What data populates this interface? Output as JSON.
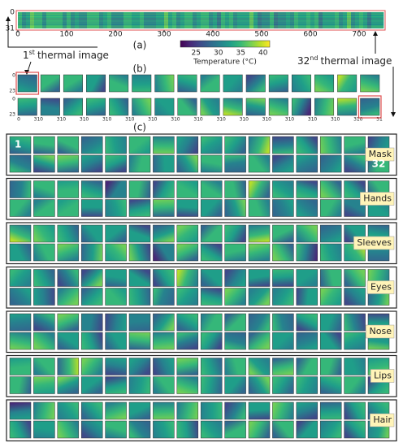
{
  "panel_a": {
    "label": "(a)",
    "yticks": [
      0,
      31
    ],
    "xticks": [
      0,
      100,
      200,
      300,
      400,
      500,
      600,
      700
    ]
  },
  "colorbar": {
    "title": "Temperature (°C)",
    "ticks": [
      25,
      30,
      35,
      40
    ]
  },
  "annotations": {
    "first": {
      "number": "1",
      "suffix": "st",
      "text": "thermal image"
    },
    "last": {
      "number": "32",
      "suffix": "nd",
      "text": "thermal image"
    }
  },
  "panel_b": {
    "label": "(b)",
    "yticks": [
      0,
      23
    ],
    "xticks": [
      0,
      31
    ]
  },
  "panel_c": {
    "label": "(c)",
    "first_index": "1",
    "last_index": "32",
    "groups": [
      "Mask",
      "Hands",
      "Sleeves",
      "Eyes",
      "Nose",
      "Lips",
      "Hair"
    ]
  }
}
